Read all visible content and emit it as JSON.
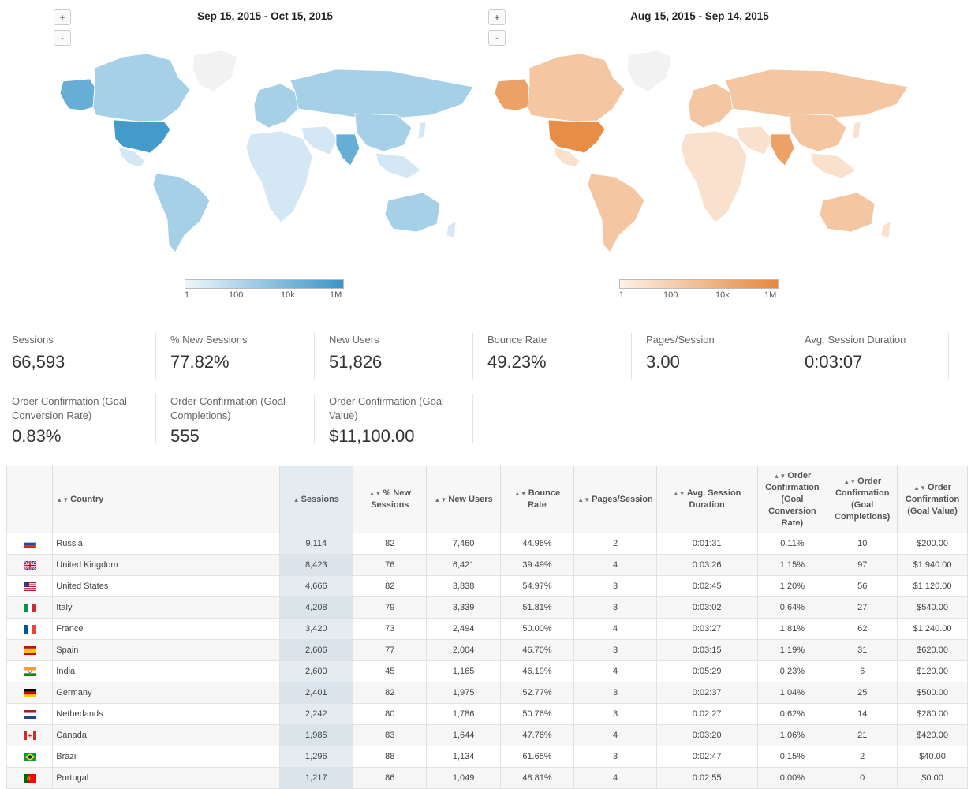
{
  "maps": [
    {
      "title": "Sep 15, 2015 - Oct 15, 2015",
      "zoom_in": "+",
      "zoom_out": "-",
      "legend_ticks": [
        "1",
        "100",
        "10k",
        "1M"
      ],
      "color_light": "#eef6fb",
      "color_dark": "#3a96c9"
    },
    {
      "title": "Aug 15, 2015 - Sep 14, 2015",
      "zoom_in": "+",
      "zoom_out": "-",
      "legend_ticks": [
        "1",
        "100",
        "10k",
        "1M"
      ],
      "color_light": "#fdf1e6",
      "color_dark": "#e6883c"
    }
  ],
  "metrics": [
    {
      "label": "Sessions",
      "value": "66,593"
    },
    {
      "label": "% New Sessions",
      "value": "77.82%"
    },
    {
      "label": "New Users",
      "value": "51,826"
    },
    {
      "label": "Bounce Rate",
      "value": "49.23%"
    },
    {
      "label": "Pages/Session",
      "value": "3.00"
    },
    {
      "label": "Avg. Session Duration",
      "value": "0:03:07"
    },
    {
      "label": "Order Confirmation (Goal Conversion Rate)",
      "value": "0.83%"
    },
    {
      "label": "Order Confirmation (Goal Completions)",
      "value": "555"
    },
    {
      "label": "Order Confirmation (Goal Value)",
      "value": "$11,100.00"
    }
  ],
  "table": {
    "headers": {
      "country": "Country",
      "sessions": "Sessions",
      "new_sessions": "% New Sessions",
      "new_users": "New Users",
      "bounce": "Bounce Rate",
      "pages": "Pages/Session",
      "duration": "Avg. Session Duration",
      "conv_rate": "Order Confirmation (Goal Conversion Rate)",
      "completions": "Order Confirmation (Goal Completions)",
      "goal_value": "Order Confirmation (Goal Value)"
    },
    "rows": [
      {
        "flag": "russia",
        "country": "Russia",
        "sessions": "9,114",
        "new_sessions": "82",
        "new_users": "7,460",
        "bounce": "44.96%",
        "pages": "2",
        "duration": "0:01:31",
        "conv_rate": "0.11%",
        "completions": "10",
        "goal_value": "$200.00"
      },
      {
        "flag": "uk",
        "country": "United Kingdom",
        "sessions": "8,423",
        "new_sessions": "76",
        "new_users": "6,421",
        "bounce": "39.49%",
        "pages": "4",
        "duration": "0:03:26",
        "conv_rate": "1.15%",
        "completions": "97",
        "goal_value": "$1,940.00"
      },
      {
        "flag": "us",
        "country": "United States",
        "sessions": "4,666",
        "new_sessions": "82",
        "new_users": "3,838",
        "bounce": "54.97%",
        "pages": "3",
        "duration": "0:02:45",
        "conv_rate": "1.20%",
        "completions": "56",
        "goal_value": "$1,120.00"
      },
      {
        "flag": "italy",
        "country": "Italy",
        "sessions": "4,208",
        "new_sessions": "79",
        "new_users": "3,339",
        "bounce": "51.81%",
        "pages": "3",
        "duration": "0:03:02",
        "conv_rate": "0.64%",
        "completions": "27",
        "goal_value": "$540.00"
      },
      {
        "flag": "france",
        "country": "France",
        "sessions": "3,420",
        "new_sessions": "73",
        "new_users": "2,494",
        "bounce": "50.00%",
        "pages": "4",
        "duration": "0:03:27",
        "conv_rate": "1.81%",
        "completions": "62",
        "goal_value": "$1,240.00"
      },
      {
        "flag": "spain",
        "country": "Spain",
        "sessions": "2,606",
        "new_sessions": "77",
        "new_users": "2,004",
        "bounce": "46.70%",
        "pages": "3",
        "duration": "0:03:15",
        "conv_rate": "1.19%",
        "completions": "31",
        "goal_value": "$620.00"
      },
      {
        "flag": "india",
        "country": "India",
        "sessions": "2,600",
        "new_sessions": "45",
        "new_users": "1,165",
        "bounce": "46.19%",
        "pages": "4",
        "duration": "0:05:29",
        "conv_rate": "0.23%",
        "completions": "6",
        "goal_value": "$120.00"
      },
      {
        "flag": "germany",
        "country": "Germany",
        "sessions": "2,401",
        "new_sessions": "82",
        "new_users": "1,975",
        "bounce": "52.77%",
        "pages": "3",
        "duration": "0:02:37",
        "conv_rate": "1.04%",
        "completions": "25",
        "goal_value": "$500.00"
      },
      {
        "flag": "netherlands",
        "country": "Netherlands",
        "sessions": "2,242",
        "new_sessions": "80",
        "new_users": "1,786",
        "bounce": "50.76%",
        "pages": "3",
        "duration": "0:02:27",
        "conv_rate": "0.62%",
        "completions": "14",
        "goal_value": "$280.00"
      },
      {
        "flag": "canada",
        "country": "Canada",
        "sessions": "1,985",
        "new_sessions": "83",
        "new_users": "1,644",
        "bounce": "47.76%",
        "pages": "4",
        "duration": "0:03:20",
        "conv_rate": "1.06%",
        "completions": "21",
        "goal_value": "$420.00"
      },
      {
        "flag": "brazil",
        "country": "Brazil",
        "sessions": "1,296",
        "new_sessions": "88",
        "new_users": "1,134",
        "bounce": "61.65%",
        "pages": "3",
        "duration": "0:02:47",
        "conv_rate": "0.15%",
        "completions": "2",
        "goal_value": "$40.00"
      },
      {
        "flag": "portugal",
        "country": "Portugal",
        "sessions": "1,217",
        "new_sessions": "86",
        "new_users": "1,049",
        "bounce": "48.81%",
        "pages": "4",
        "duration": "0:02:55",
        "conv_rate": "0.00%",
        "completions": "0",
        "goal_value": "$0.00"
      }
    ]
  }
}
